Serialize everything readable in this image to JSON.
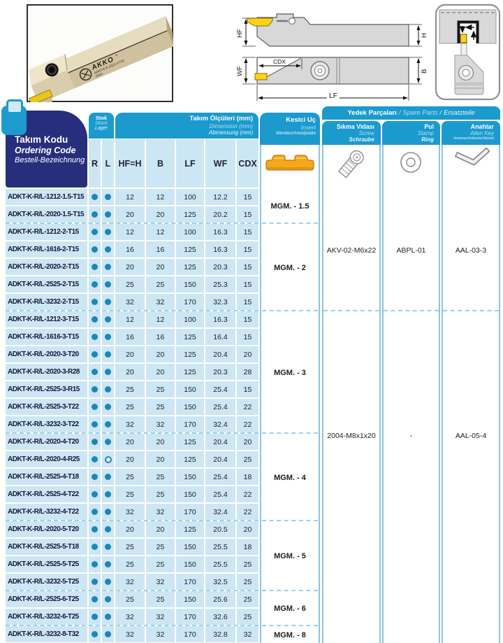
{
  "figures": {
    "photo": {
      "brand": "AKKO",
      "reg": "®",
      "marking": "ADKT-K-R-2525-3-T22",
      "marking2": "26991"
    },
    "side_view": {
      "hf": "HF",
      "h": "H"
    },
    "plan_view": {
      "wf": "WF",
      "b": "B",
      "cdx": "CDX",
      "lf": "LF"
    }
  },
  "header": {
    "code_block": {
      "tr": "Takım Kodu",
      "en": "Ordering Code",
      "de": "Bestell-Bezeichnung"
    },
    "stock": {
      "tr": "Stok",
      "en": "Stock",
      "de": "Lager"
    },
    "dimensions": {
      "tr": "Takım Ölçüleri (mm)",
      "en": "Dimension (mm)",
      "de": "Abmessung (mm)"
    },
    "columns": [
      "R",
      "L",
      "HF=H",
      "B",
      "LF",
      "WF",
      "CDX"
    ],
    "insert": {
      "tr": "Kesici Uç",
      "en": "Insert",
      "de": "Wendeschneidplatte"
    },
    "spare_parts": {
      "tr": "Yedek Parçaları",
      "en": "Spare Parts",
      "de": "Ersatzteile",
      "sep": "/"
    },
    "screw": {
      "tr": "Sıkma Vidası",
      "en": "Screw",
      "de": "Schraube"
    },
    "ring": {
      "tr": "Pul",
      "en": "Stamp",
      "de": "Ring"
    },
    "key": {
      "tr": "Anahtar",
      "en": "Allen Key",
      "de": "Innensechskantschlüssel"
    }
  },
  "table": {
    "rows": [
      {
        "code": "ADKT-K-R/L-1212-1.5-T15",
        "r": "filled",
        "l": "filled",
        "hf": "12",
        "b": "12",
        "lf": "100",
        "wf": "12.2",
        "cdx": "15"
      },
      {
        "code": "ADKT-K-R/L-2020-1.5-T15",
        "r": "filled",
        "l": "filled",
        "hf": "20",
        "b": "20",
        "lf": "125",
        "wf": "20.2",
        "cdx": "15"
      },
      {
        "code": "ADKT-K-R/L-1212-2-T15",
        "r": "filled",
        "l": "filled",
        "hf": "12",
        "b": "12",
        "lf": "100",
        "wf": "16.3",
        "cdx": "15"
      },
      {
        "code": "ADKT-K-R/L-1616-2-T15",
        "r": "filled",
        "l": "filled",
        "hf": "16",
        "b": "16",
        "lf": "125",
        "wf": "16.3",
        "cdx": "15"
      },
      {
        "code": "ADKT-K-R/L-2020-2-T15",
        "r": "filled",
        "l": "filled",
        "hf": "20",
        "b": "20",
        "lf": "125",
        "wf": "20.3",
        "cdx": "15"
      },
      {
        "code": "ADKT-K-R/L-2525-2-T15",
        "r": "filled",
        "l": "filled",
        "hf": "25",
        "b": "25",
        "lf": "150",
        "wf": "25.3",
        "cdx": "15"
      },
      {
        "code": "ADKT-K-R/L-3232-2-T15",
        "r": "filled",
        "l": "filled",
        "hf": "32",
        "b": "32",
        "lf": "170",
        "wf": "32.3",
        "cdx": "15"
      },
      {
        "code": "ADKT-K-R/L-1212-3-T15",
        "r": "filled",
        "l": "filled",
        "hf": "12",
        "b": "12",
        "lf": "100",
        "wf": "16.3",
        "cdx": "15"
      },
      {
        "code": "ADKT-K-R/L-1616-3-T15",
        "r": "filled",
        "l": "filled",
        "hf": "16",
        "b": "16",
        "lf": "125",
        "wf": "16.4",
        "cdx": "15"
      },
      {
        "code": "ADKT-K-R/L-2020-3-T20",
        "r": "filled",
        "l": "filled",
        "hf": "20",
        "b": "20",
        "lf": "125",
        "wf": "20.4",
        "cdx": "20"
      },
      {
        "code": "ADKT-K-R/L-2020-3-R28",
        "r": "filled",
        "l": "filled",
        "hf": "20",
        "b": "20",
        "lf": "125",
        "wf": "20.3",
        "cdx": "28"
      },
      {
        "code": "ADKT-K-R/L-2525-3-R15",
        "r": "filled",
        "l": "filled",
        "hf": "25",
        "b": "25",
        "lf": "150",
        "wf": "25.4",
        "cdx": "15"
      },
      {
        "code": "ADKT-K-R/L-2525-3-T22",
        "r": "filled",
        "l": "filled",
        "hf": "25",
        "b": "25",
        "lf": "150",
        "wf": "25.4",
        "cdx": "22"
      },
      {
        "code": "ADKT-K-R/L-3232-3-T22",
        "r": "filled",
        "l": "filled",
        "hf": "32",
        "b": "32",
        "lf": "170",
        "wf": "32.4",
        "cdx": "22"
      },
      {
        "code": "ADKT-K-R/L-2020-4-T20",
        "r": "filled",
        "l": "filled",
        "hf": "20",
        "b": "20",
        "lf": "125",
        "wf": "20.4",
        "cdx": "20"
      },
      {
        "code": "ADKT-K-R/L-2020-4-R25",
        "r": "filled",
        "l": "open",
        "hf": "20",
        "b": "20",
        "lf": "125",
        "wf": "20.4",
        "cdx": "25"
      },
      {
        "code": "ADKT-K-R/L-2525-4-T18",
        "r": "filled",
        "l": "filled",
        "hf": "25",
        "b": "25",
        "lf": "150",
        "wf": "25.4",
        "cdx": "18"
      },
      {
        "code": "ADKT-K-R/L-2525-4-T22",
        "r": "filled",
        "l": "filled",
        "hf": "25",
        "b": "25",
        "lf": "150",
        "wf": "25.4",
        "cdx": "22"
      },
      {
        "code": "ADKT-K-R/L-3232-4-T22",
        "r": "filled",
        "l": "filled",
        "hf": "32",
        "b": "32",
        "lf": "170",
        "wf": "32.4",
        "cdx": "22"
      },
      {
        "code": "ADKT-K-R/L-2020-5-T20",
        "r": "filled",
        "l": "filled",
        "hf": "20",
        "b": "20",
        "lf": "125",
        "wf": "20.5",
        "cdx": "20"
      },
      {
        "code": "ADKT-K-R/L-2525-5-T18",
        "r": "filled",
        "l": "filled",
        "hf": "25",
        "b": "25",
        "lf": "150",
        "wf": "25.5",
        "cdx": "18"
      },
      {
        "code": "ADKT-K-R/L-2525-5-T25",
        "r": "filled",
        "l": "filled",
        "hf": "25",
        "b": "25",
        "lf": "150",
        "wf": "25.5",
        "cdx": "25"
      },
      {
        "code": "ADKT-K-R/L-3232-5-T25",
        "r": "filled",
        "l": "filled",
        "hf": "32",
        "b": "32",
        "lf": "170",
        "wf": "32.5",
        "cdx": "25"
      },
      {
        "code": "ADKT-K-R/L-2525-6-T25",
        "r": "filled",
        "l": "filled",
        "hf": "25",
        "b": "25",
        "lf": "150",
        "wf": "25.6",
        "cdx": "25"
      },
      {
        "code": "ADKT-K-R/L-3232-6-T25",
        "r": "filled",
        "l": "filled",
        "hf": "32",
        "b": "32",
        "lf": "170",
        "wf": "32.6",
        "cdx": "25"
      },
      {
        "code": "ADKT-K-R/L-3232-8-T32",
        "r": "filled",
        "l": "filled",
        "hf": "32",
        "b": "32",
        "lf": "170",
        "wf": "32.8",
        "cdx": "32"
      }
    ],
    "insert_groups": [
      {
        "start": 0,
        "count": 2,
        "label": "MGM. - 1.5"
      },
      {
        "start": 2,
        "count": 5,
        "label": "MGM. - 2"
      },
      {
        "start": 7,
        "count": 7,
        "label": "MGM. - 3"
      },
      {
        "start": 14,
        "count": 5,
        "label": "MGM. - 4"
      },
      {
        "start": 19,
        "count": 4,
        "label": "MGM. - 5"
      },
      {
        "start": 23,
        "count": 2,
        "label": "MGM. - 6"
      },
      {
        "start": 25,
        "count": 1,
        "label": "MGM. - 8"
      }
    ],
    "spare_groups": [
      {
        "start": 0,
        "count": 7,
        "screw": "AKV-02-M6x22",
        "ring": "ABPL-01",
        "key": "AAL-03-3"
      },
      {
        "start": 7,
        "count": 19,
        "screw": "2004-M8x1x20",
        "ring": "-",
        "key": "AAL-05-4"
      }
    ]
  },
  "colors": {
    "header_blue": "#1b9ace",
    "navy": "#272f7d",
    "row_blue": "#cde6f4",
    "stock_dot": "#1b87b9",
    "insert_gold": "#f5a81c",
    "drawing_yellow": "#ffd21a",
    "dashed_separator": "#9cd2ec"
  }
}
